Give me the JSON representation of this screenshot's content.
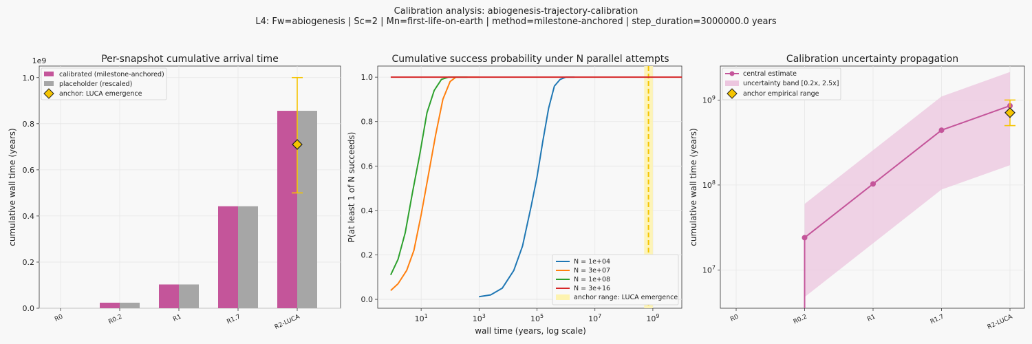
{
  "figure": {
    "title_line1": "Calibration analysis: abiogenesis-trajectory-calibration",
    "title_line2": "L4: Fw=abiogenesis | Sc=2 | Mn=first-life-on-earth | method=milestone-anchored | step_duration=3000000.0 years"
  },
  "colors": {
    "calibrated": "#c4559a",
    "placeholder": "#a6a6a6",
    "anchor": "#f5c400",
    "band": "#ecc6df",
    "anchor_band": "#fdf3b0",
    "s1": "#1f77b4",
    "s2": "#ff7f0e",
    "s3": "#2ca02c",
    "s4": "#d62728",
    "grid": "#e6e6e6"
  },
  "chart_data": [
    {
      "type": "bar",
      "title": "Per-snapshot cumulative arrival time",
      "ylabel": "cumulative wall time (years)",
      "y_multiplier": "1e9",
      "categories": [
        "R0",
        "R0.2",
        "R1",
        "R1.7",
        "R2-LUCA"
      ],
      "ylim": [
        0,
        1.05
      ],
      "yticks": [
        "0.0",
        "0.2",
        "0.4",
        "0.6",
        "0.8",
        "1.0"
      ],
      "series": [
        {
          "name": "calibrated (milestone-anchored)",
          "values": [
            0,
            0.024,
            0.103,
            0.442,
            0.856
          ]
        },
        {
          "name": "placeholder (rescaled)",
          "values": [
            0,
            0.024,
            0.103,
            0.442,
            0.856
          ]
        }
      ],
      "anchor": {
        "name": "anchor: LUCA emergence",
        "category": "R2-LUCA",
        "value": 0.71,
        "low": 0.5,
        "high": 1.0
      },
      "legend": "top-left",
      "grid": true
    },
    {
      "type": "line",
      "title": "Cumulative success probability under N parallel attempts",
      "xlabel": "wall time (years, log scale)",
      "ylabel": "P(at least 1 of N succeeds)",
      "xscale": "log",
      "xlim_log10": [
        -0.5,
        10.0
      ],
      "ylim": [
        -0.04,
        1.05
      ],
      "xticks": [
        "1",
        "3",
        "5",
        "7",
        "9"
      ],
      "yticks": [
        "0.0",
        "0.2",
        "0.4",
        "0.6",
        "0.8",
        "1.0"
      ],
      "series": [
        {
          "name": "N = 1e+04",
          "log10_x": [
            3.0,
            3.4,
            3.8,
            4.2,
            4.5,
            4.8,
            5.0,
            5.2,
            5.4,
            5.6,
            5.8,
            6.0,
            6.3
          ],
          "y": [
            0.012,
            0.02,
            0.05,
            0.13,
            0.24,
            0.42,
            0.55,
            0.71,
            0.86,
            0.96,
            0.99,
            1.0,
            1.0
          ]
        },
        {
          "name": "N = 3e+07",
          "log10_x": [
            -0.05,
            0.2,
            0.5,
            0.75,
            1.0,
            1.25,
            1.5,
            1.75,
            2.0,
            2.2,
            2.6,
            3.0
          ],
          "y": [
            0.04,
            0.07,
            0.13,
            0.22,
            0.38,
            0.56,
            0.74,
            0.9,
            0.98,
            1.0,
            1.0,
            1.0
          ]
        },
        {
          "name": "N = 1e+08",
          "log10_x": [
            -0.05,
            0.2,
            0.45,
            0.7,
            0.95,
            1.2,
            1.45,
            1.7,
            1.95,
            2.2,
            2.6
          ],
          "y": [
            0.11,
            0.18,
            0.3,
            0.48,
            0.65,
            0.84,
            0.94,
            0.99,
            1.0,
            1.0,
            1.0
          ]
        },
        {
          "name": "N = 3e+16",
          "log10_x": [
            -0.05,
            10.0
          ],
          "y": [
            1.0,
            1.0
          ]
        }
      ],
      "anchor_range": {
        "name": "anchor range: LUCA emergence",
        "log10_low": 8.7,
        "log10_high": 9.0,
        "log10_center": 8.85
      },
      "legend": "bottom-right",
      "grid": true
    },
    {
      "type": "line",
      "title": "Calibration uncertainty propagation",
      "ylabel": "cumulative wall time (years)",
      "yscale": "log",
      "categories": [
        "R0",
        "R0.2",
        "R1",
        "R1.7",
        "R2-LUCA"
      ],
      "ylim_log10": [
        6.55,
        9.4
      ],
      "yticks": [
        "10^7",
        "10^8",
        "10^9"
      ],
      "series": [
        {
          "name": "central estimate",
          "values": [
            null,
            24000000,
            103000000,
            442000000,
            856000000
          ]
        },
        {
          "name": "uncertainty band [0.2x, 2.5x]",
          "low": [
            null,
            4800000,
            20600000,
            88400000,
            171000000
          ],
          "high": [
            null,
            60000000,
            257000000,
            1100000000,
            2140000000
          ]
        }
      ],
      "anchor": {
        "name": "anchor empirical range",
        "category": "R2-LUCA",
        "value": 710000000,
        "low": 500000000,
        "high": 1000000000
      },
      "legend": "top-left",
      "grid": true
    }
  ]
}
